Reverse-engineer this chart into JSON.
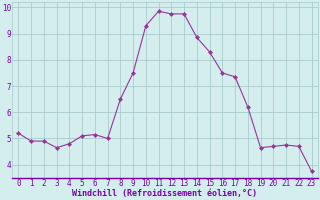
{
  "x": [
    0,
    1,
    2,
    3,
    4,
    5,
    6,
    7,
    8,
    9,
    10,
    11,
    12,
    13,
    14,
    15,
    16,
    17,
    18,
    19,
    20,
    21,
    22,
    23
  ],
  "y": [
    5.2,
    4.9,
    4.9,
    4.65,
    4.8,
    5.1,
    5.15,
    5.0,
    6.5,
    7.5,
    9.3,
    9.85,
    9.75,
    9.75,
    8.85,
    8.3,
    7.5,
    7.35,
    6.2,
    4.65,
    4.7,
    4.75,
    4.7,
    3.75
  ],
  "line_color": "#993399",
  "marker": "D",
  "marker_size": 2.0,
  "bg_color": "#d4eeed",
  "grid_color": "#aacccc",
  "xlabel": "Windchill (Refroidissement éolien,°C)",
  "xlabel_color": "#7700aa",
  "tick_color": "#7700aa",
  "ylim": [
    3.5,
    10.2
  ],
  "xlim": [
    -0.5,
    23.5
  ],
  "yticks": [
    4,
    5,
    6,
    7,
    8,
    9,
    10
  ],
  "xticks": [
    0,
    1,
    2,
    3,
    4,
    5,
    6,
    7,
    8,
    9,
    10,
    11,
    12,
    13,
    14,
    15,
    16,
    17,
    18,
    19,
    20,
    21,
    22,
    23
  ],
  "tick_fontsize": 5.5,
  "xlabel_fontsize": 6.0
}
